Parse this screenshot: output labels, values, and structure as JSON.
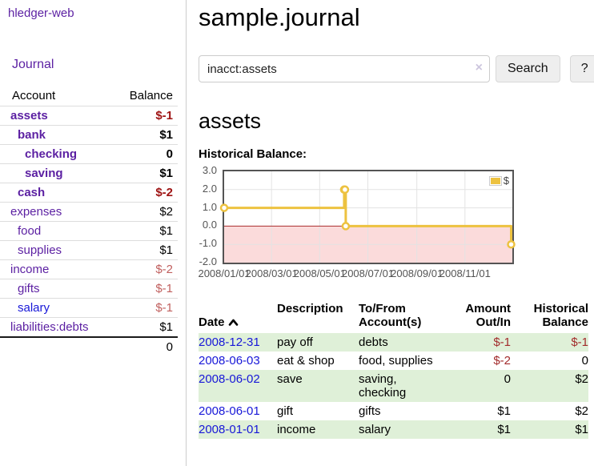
{
  "app": {
    "brand": "hledger-web"
  },
  "sidebar": {
    "nav_journal": "Journal",
    "headers": {
      "account": "Account",
      "balance": "Balance"
    },
    "accounts": [
      {
        "name": "assets",
        "level": 0,
        "bold": true,
        "color": "purple",
        "balance": "$-1",
        "balance_style": "neg-strong"
      },
      {
        "name": "bank",
        "level": 1,
        "bold": true,
        "color": "purple",
        "balance": "$1",
        "balance_style": ""
      },
      {
        "name": "checking",
        "level": 2,
        "bold": true,
        "color": "purple",
        "balance": "0",
        "balance_style": ""
      },
      {
        "name": "saving",
        "level": 2,
        "bold": true,
        "color": "purple",
        "balance": "$1",
        "balance_style": ""
      },
      {
        "name": "cash",
        "level": 1,
        "bold": true,
        "color": "purple",
        "balance": "$-2",
        "balance_style": "neg-strong"
      },
      {
        "name": "expenses",
        "level": 0,
        "bold": false,
        "color": "purple",
        "balance": "$2",
        "balance_style": ""
      },
      {
        "name": "food",
        "level": 1,
        "bold": false,
        "color": "purple",
        "balance": "$1",
        "balance_style": ""
      },
      {
        "name": "supplies",
        "level": 1,
        "bold": false,
        "color": "purple",
        "balance": "$1",
        "balance_style": ""
      },
      {
        "name": "income",
        "level": 0,
        "bold": false,
        "color": "purple",
        "balance": "$-2",
        "balance_style": "neg-soft"
      },
      {
        "name": "gifts",
        "level": 1,
        "bold": false,
        "color": "purple",
        "balance": "$-1",
        "balance_style": "neg-soft"
      },
      {
        "name": "salary",
        "level": 1,
        "bold": false,
        "color": "blue",
        "balance": "$-1",
        "balance_style": "neg-soft"
      },
      {
        "name": "liabilities:debts",
        "level": 0,
        "bold": false,
        "color": "purple",
        "balance": "$1",
        "balance_style": ""
      }
    ],
    "total": "0"
  },
  "main": {
    "title": "sample.journal",
    "search": {
      "value": "inacct:assets",
      "clear_icon": "×",
      "button_label": "Search",
      "help_label": "?"
    },
    "account_heading": "assets",
    "register": {
      "headers": {
        "date": "Date",
        "description": "Description",
        "accounts": "To/From\nAccount(s)",
        "amount": "Amount\nOut/In",
        "balance": "Historical\nBalance"
      },
      "rows": [
        {
          "date": "2008-12-31",
          "description": "pay off",
          "accounts": "debts",
          "amount": "$-1",
          "amount_negative": true,
          "balance": "$-1",
          "balance_negative": true
        },
        {
          "date": "2008-06-03",
          "description": "eat & shop",
          "accounts": "food, supplies",
          "amount": "$-2",
          "amount_negative": true,
          "balance": "0",
          "balance_negative": false
        },
        {
          "date": "2008-06-02",
          "description": "save",
          "accounts": "saving,\nchecking",
          "amount": "0",
          "amount_negative": false,
          "balance": "$2",
          "balance_negative": false
        },
        {
          "date": "2008-06-01",
          "description": "gift",
          "accounts": "gifts",
          "amount": "$1",
          "amount_negative": false,
          "balance": "$2",
          "balance_negative": false
        },
        {
          "date": "2008-01-01",
          "description": "income",
          "accounts": "salary",
          "amount": "$1",
          "amount_negative": false,
          "balance": "$1",
          "balance_negative": false
        }
      ]
    }
  },
  "chart_data": {
    "type": "line",
    "title": "Historical Balance:",
    "series": [
      {
        "name": "$",
        "color": "#edc240",
        "step": true,
        "points": [
          {
            "x": "2008/01/01",
            "y": 1
          },
          {
            "x": "2008/06/01",
            "y": 2
          },
          {
            "x": "2008/06/02",
            "y": 2
          },
          {
            "x": "2008/06/03",
            "y": 0
          },
          {
            "x": "2008/12/31",
            "y": -1
          }
        ]
      }
    ],
    "x_ticks": [
      "2008/01/01",
      "2008/03/01",
      "2008/05/01",
      "2008/07/01",
      "2008/09/01",
      "2008/11/01"
    ],
    "y_ticks": [
      3.0,
      2.0,
      1.0,
      0.0,
      -1.0,
      -2.0
    ],
    "ylim": [
      -2,
      3
    ],
    "grid": true,
    "legend_position": "top-right",
    "negative_region": {
      "from": -2,
      "to": 0,
      "color": "#fbdbdb"
    },
    "zero_line_color": "#aa2e2e",
    "plot_border_color": "#545454",
    "grid_color": "#e3e3e3"
  }
}
